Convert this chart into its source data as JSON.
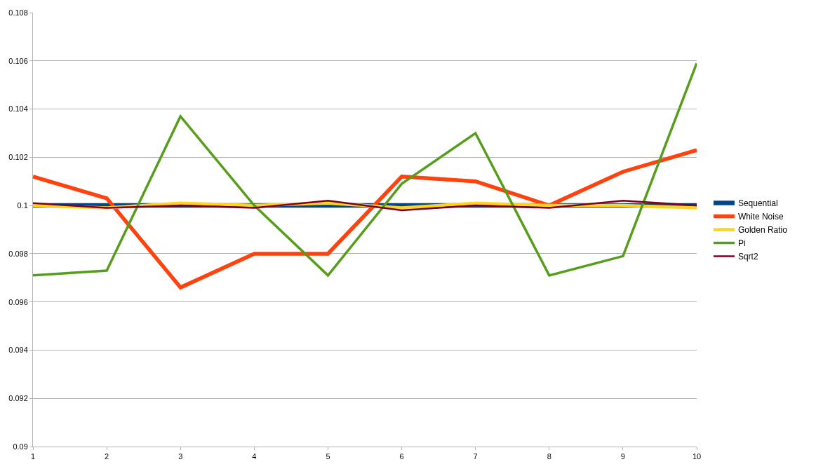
{
  "chart_data": {
    "type": "line",
    "x": [
      1,
      2,
      3,
      4,
      5,
      6,
      7,
      8,
      9,
      10
    ],
    "xlim": [
      1,
      10
    ],
    "xticks": [
      1,
      2,
      3,
      4,
      5,
      6,
      7,
      8,
      9,
      10
    ],
    "ylim": [
      0.09,
      0.108
    ],
    "yticks": [
      0.09,
      0.092,
      0.094,
      0.096,
      0.098,
      0.1,
      0.102,
      0.104,
      0.106,
      0.108
    ],
    "grid": "y",
    "legend": "right",
    "marker": "none",
    "line_style": "solid",
    "series": [
      {
        "name": "Sequential",
        "color": "#004586",
        "values": [
          0.1,
          0.1,
          0.1,
          0.1,
          0.1,
          0.1,
          0.1,
          0.1,
          0.1,
          0.1
        ]
      },
      {
        "name": "White Noise",
        "color": "#ff420e",
        "values": [
          0.1012,
          0.1003,
          0.0966,
          0.098,
          0.098,
          0.1012,
          0.101,
          0.1,
          0.1014,
          0.1023
        ]
      },
      {
        "name": "Golden Ratio",
        "color": "#ffd320",
        "values": [
          0.1,
          0.0999,
          0.1001,
          0.1,
          0.1001,
          0.0999,
          0.1001,
          0.1,
          0.1,
          0.0999
        ]
      },
      {
        "name": "Pi",
        "color": "#579d1c",
        "values": [
          0.0971,
          0.0973,
          0.1037,
          0.1,
          0.0971,
          0.1009,
          0.103,
          0.0971,
          0.0979,
          0.1059
        ]
      },
      {
        "name": "Sqrt2",
        "color": "#7e0021",
        "values": [
          0.1001,
          0.0999,
          0.1,
          0.0999,
          0.1002,
          0.0998,
          0.1,
          0.0999,
          0.1002,
          0.1
        ]
      }
    ]
  }
}
